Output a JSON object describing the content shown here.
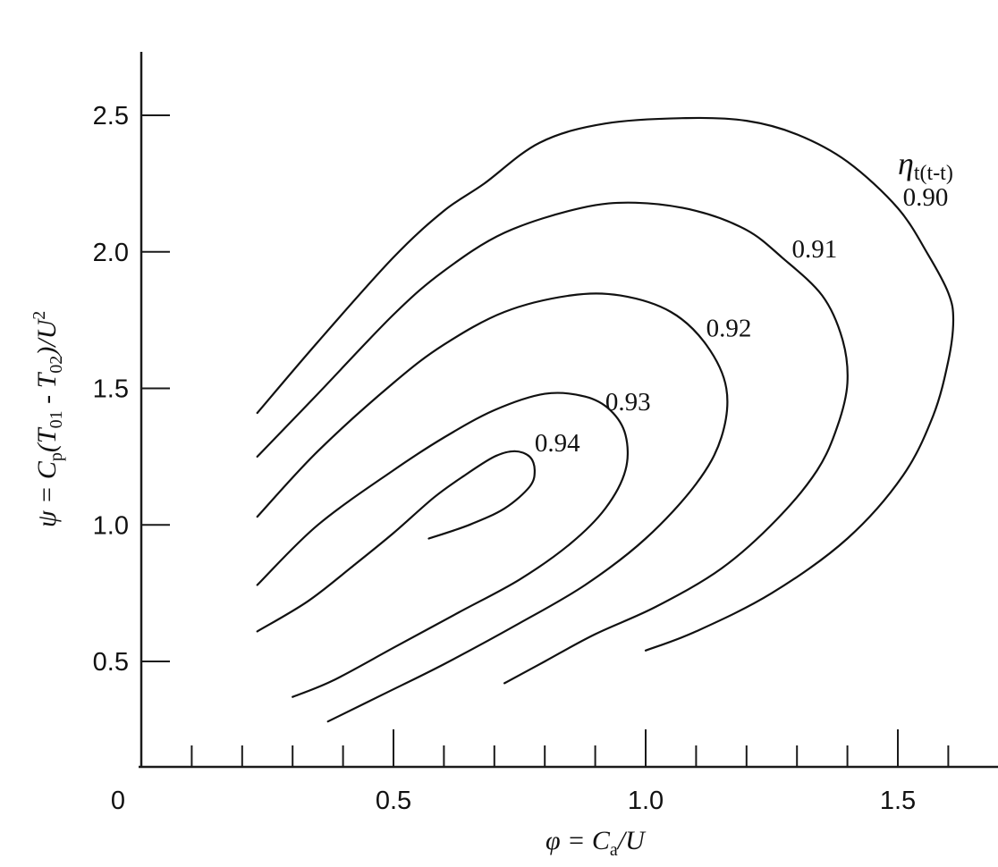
{
  "chart_data": {
    "type": "line",
    "title": "",
    "xlabel": "φ = Ca/U",
    "ylabel": "ψ = Cp(T01 - T02)/U²",
    "series_label": "ηt(t-t)",
    "xlim": [
      0,
      1.75
    ],
    "ylim": [
      0.1,
      2.75
    ],
    "x_ticks": [
      {
        "value": 0,
        "label": "0"
      },
      {
        "value": 0.5,
        "label": "0.5"
      },
      {
        "value": 1.0,
        "label": "1.0"
      },
      {
        "value": 1.5,
        "label": "1.5"
      }
    ],
    "x_minor_ticks": [
      0.1,
      0.2,
      0.3,
      0.4,
      0.6,
      0.7,
      0.8,
      0.9,
      1.1,
      1.2,
      1.3,
      1.4,
      1.6
    ],
    "y_ticks": [
      {
        "value": 0.5,
        "label": "0.5"
      },
      {
        "value": 1.0,
        "label": "1.0"
      },
      {
        "value": 1.5,
        "label": "1.5"
      },
      {
        "value": 2.0,
        "label": "2.0"
      },
      {
        "value": 2.5,
        "label": "2.5"
      }
    ],
    "grid": false,
    "series": [
      {
        "name": "0.90",
        "label_anchor": {
          "x": 1.51,
          "y": 2.17
        },
        "points": [
          [
            0.23,
            1.41
          ],
          [
            0.35,
            1.67
          ],
          [
            0.5,
            1.98
          ],
          [
            0.6,
            2.15
          ],
          [
            0.68,
            2.25
          ],
          [
            0.79,
            2.4
          ],
          [
            0.92,
            2.47
          ],
          [
            1.08,
            2.49
          ],
          [
            1.2,
            2.48
          ],
          [
            1.3,
            2.43
          ],
          [
            1.4,
            2.33
          ],
          [
            1.5,
            2.16
          ],
          [
            1.56,
            1.99
          ],
          [
            1.6,
            1.85
          ],
          [
            1.61,
            1.75
          ],
          [
            1.6,
            1.6
          ],
          [
            1.57,
            1.4
          ],
          [
            1.51,
            1.18
          ],
          [
            1.4,
            0.95
          ],
          [
            1.25,
            0.75
          ],
          [
            1.1,
            0.61
          ],
          [
            1.0,
            0.54
          ]
        ]
      },
      {
        "name": "0.91",
        "label_anchor": {
          "x": 1.29,
          "y": 1.98
        },
        "points": [
          [
            0.23,
            1.25
          ],
          [
            0.35,
            1.48
          ],
          [
            0.5,
            1.77
          ],
          [
            0.6,
            1.93
          ],
          [
            0.72,
            2.07
          ],
          [
            0.87,
            2.16
          ],
          [
            0.98,
            2.18
          ],
          [
            1.1,
            2.15
          ],
          [
            1.2,
            2.08
          ],
          [
            1.27,
            1.98
          ],
          [
            1.35,
            1.84
          ],
          [
            1.39,
            1.68
          ],
          [
            1.4,
            1.52
          ],
          [
            1.38,
            1.36
          ],
          [
            1.34,
            1.2
          ],
          [
            1.26,
            1.02
          ],
          [
            1.15,
            0.84
          ],
          [
            1.02,
            0.7
          ],
          [
            0.9,
            0.6
          ],
          [
            0.8,
            0.5
          ],
          [
            0.72,
            0.42
          ]
        ]
      },
      {
        "name": "0.92",
        "label_anchor": {
          "x": 1.12,
          "y": 1.69
        },
        "points": [
          [
            0.23,
            1.03
          ],
          [
            0.35,
            1.27
          ],
          [
            0.5,
            1.52
          ],
          [
            0.6,
            1.66
          ],
          [
            0.72,
            1.78
          ],
          [
            0.85,
            1.84
          ],
          [
            0.95,
            1.84
          ],
          [
            1.05,
            1.78
          ],
          [
            1.12,
            1.66
          ],
          [
            1.16,
            1.5
          ],
          [
            1.15,
            1.32
          ],
          [
            1.1,
            1.15
          ],
          [
            1.0,
            0.95
          ],
          [
            0.88,
            0.78
          ],
          [
            0.75,
            0.64
          ],
          [
            0.6,
            0.49
          ],
          [
            0.48,
            0.38
          ],
          [
            0.37,
            0.28
          ]
        ]
      },
      {
        "name": "0.93",
        "label_anchor": {
          "x": 0.92,
          "y": 1.42
        },
        "points": [
          [
            0.23,
            0.78
          ],
          [
            0.35,
            1.0
          ],
          [
            0.5,
            1.2
          ],
          [
            0.6,
            1.32
          ],
          [
            0.7,
            1.42
          ],
          [
            0.8,
            1.48
          ],
          [
            0.88,
            1.47
          ],
          [
            0.93,
            1.42
          ],
          [
            0.96,
            1.33
          ],
          [
            0.96,
            1.2
          ],
          [
            0.92,
            1.06
          ],
          [
            0.85,
            0.93
          ],
          [
            0.75,
            0.8
          ],
          [
            0.63,
            0.68
          ],
          [
            0.5,
            0.55
          ],
          [
            0.38,
            0.43
          ],
          [
            0.3,
            0.37
          ]
        ]
      },
      {
        "name": "0.94",
        "label_anchor": {
          "x": 0.78,
          "y": 1.27
        },
        "points": [
          [
            0.23,
            0.61
          ],
          [
            0.33,
            0.72
          ],
          [
            0.42,
            0.85
          ],
          [
            0.5,
            0.97
          ],
          [
            0.58,
            1.1
          ],
          [
            0.64,
            1.18
          ],
          [
            0.7,
            1.25
          ],
          [
            0.74,
            1.27
          ],
          [
            0.77,
            1.25
          ],
          [
            0.78,
            1.2
          ],
          [
            0.77,
            1.14
          ],
          [
            0.72,
            1.06
          ],
          [
            0.65,
            1.0
          ],
          [
            0.57,
            0.95
          ]
        ]
      }
    ]
  }
}
